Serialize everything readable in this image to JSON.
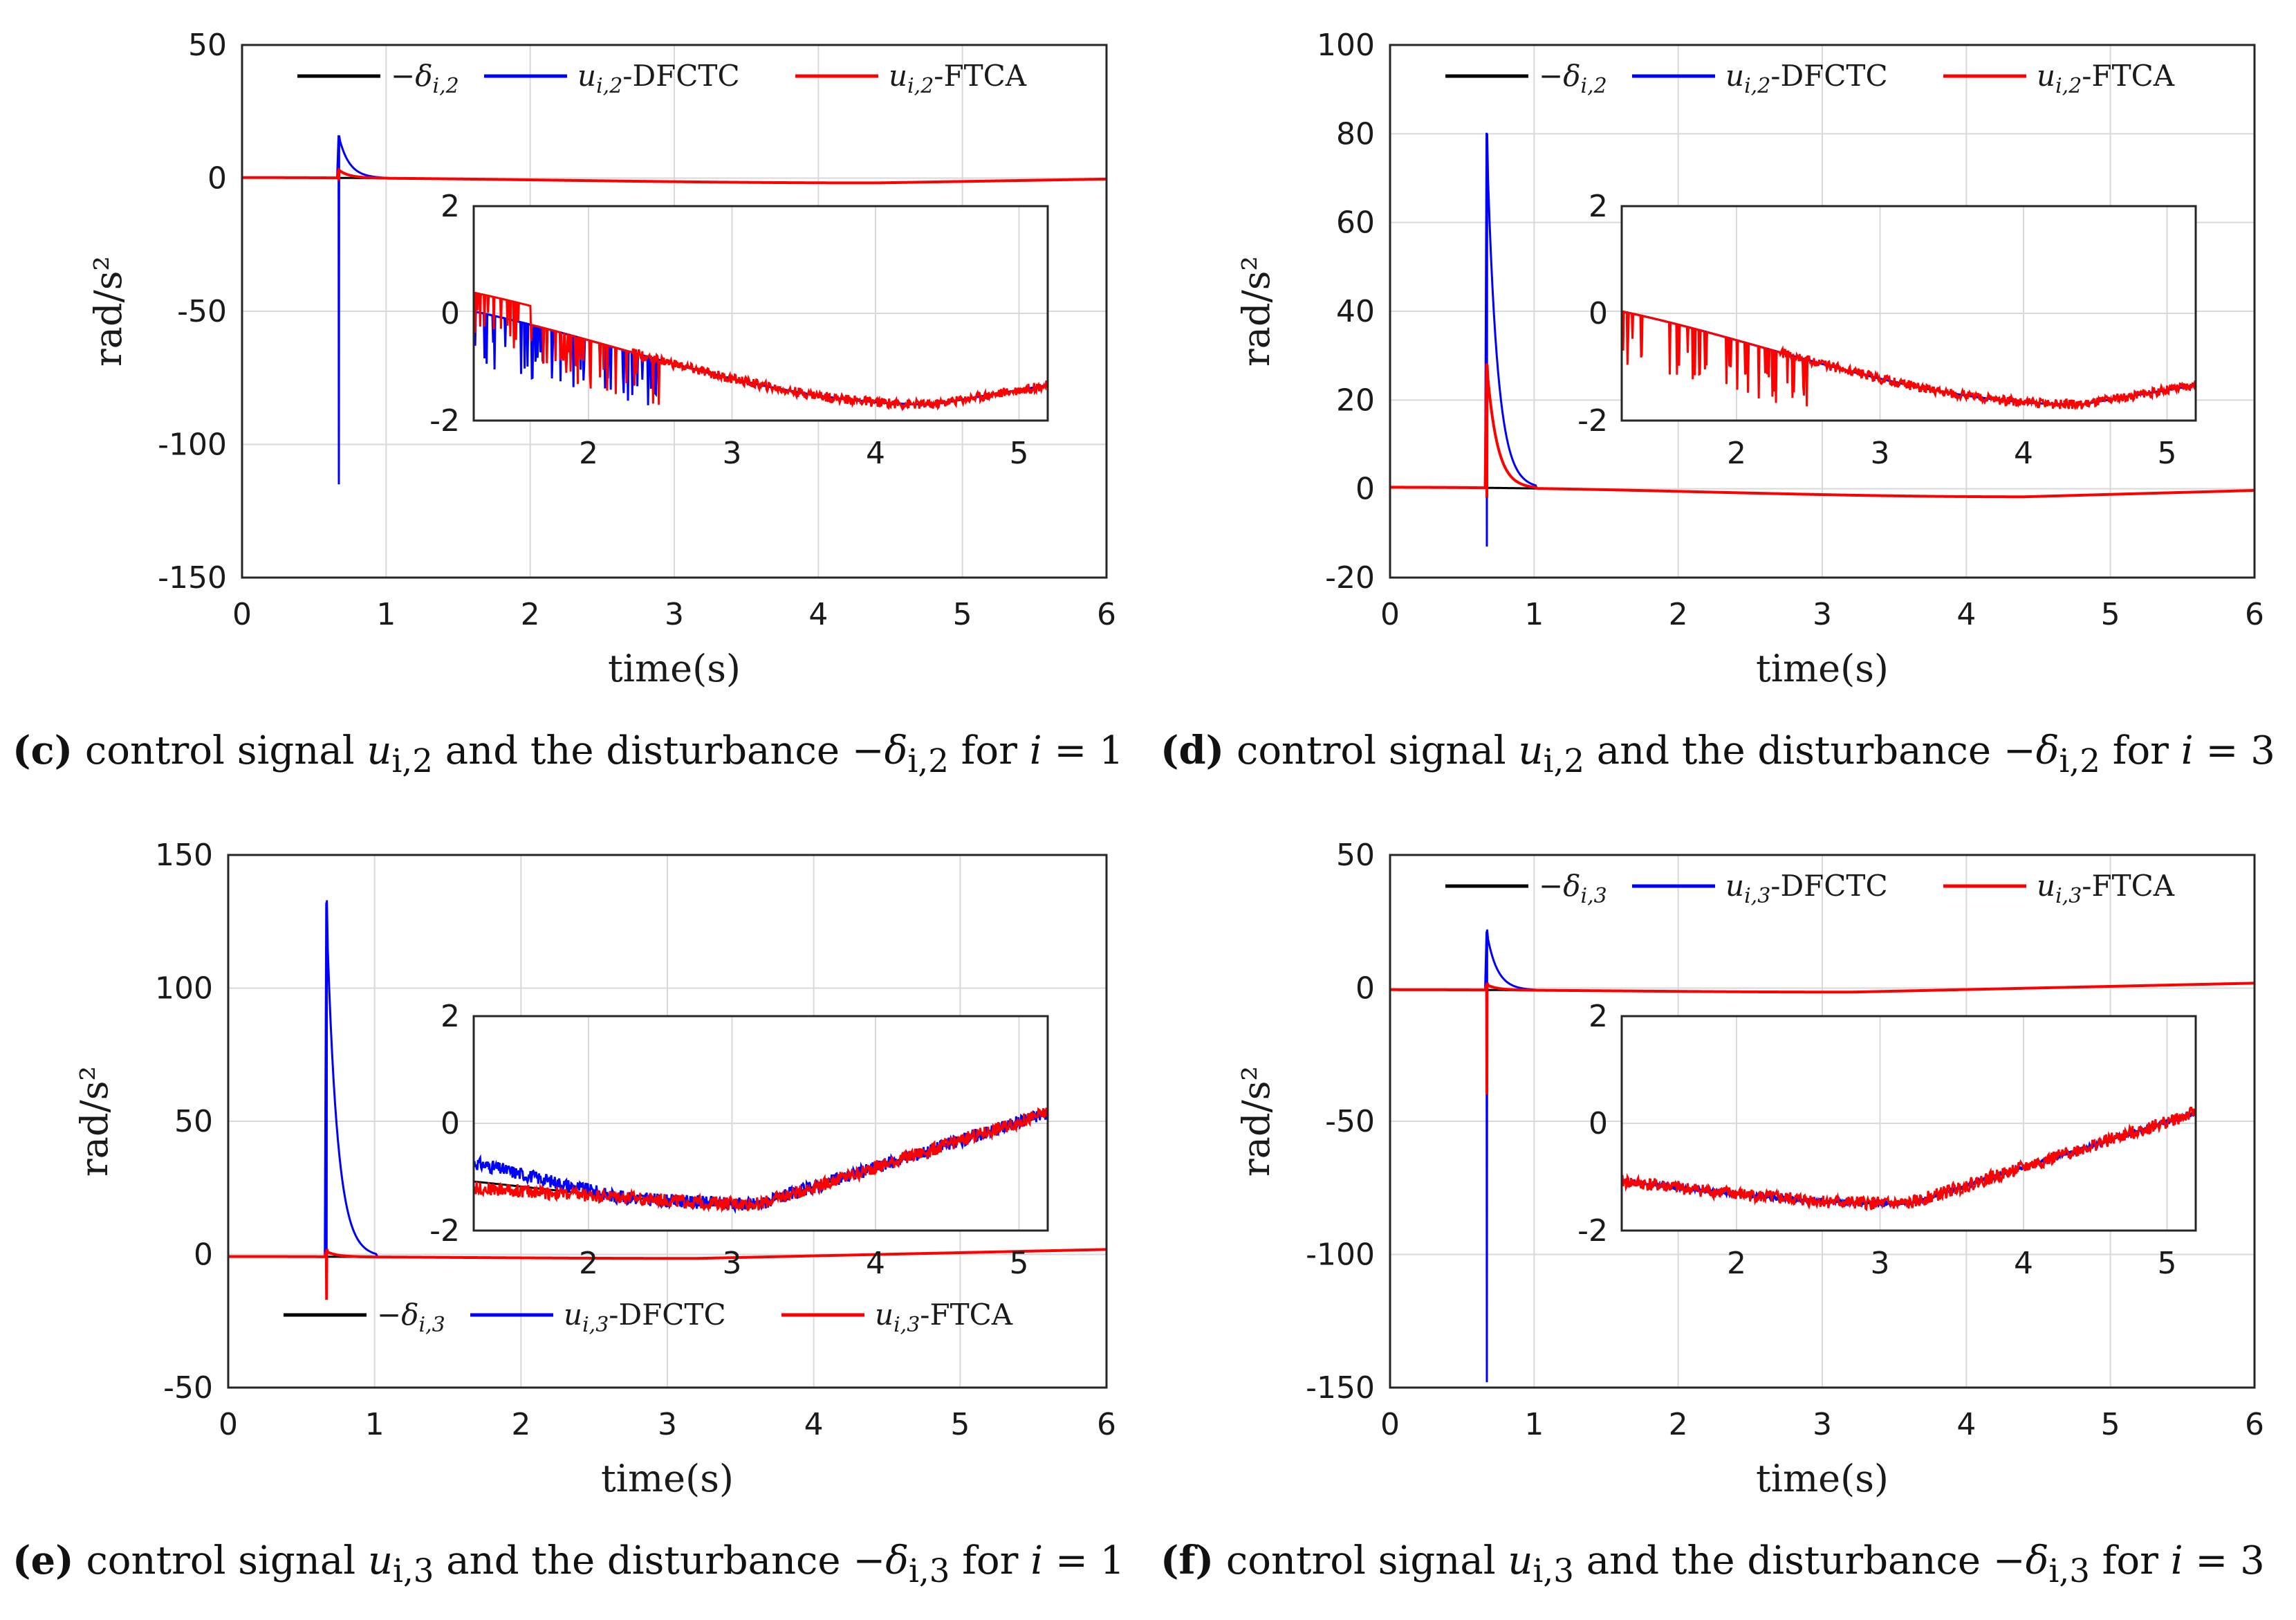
{
  "colors": {
    "disturbance": "#000000",
    "dfctc": "#0000ff",
    "ftca": "#ff0000",
    "grid": "#d9d9d9"
  },
  "chart_data": [
    {
      "id": "c",
      "type": "line",
      "caption": {
        "letter": "(c)",
        "pre": "control signal ",
        "sym": "u",
        "sub": "i,2",
        "mid": " and the disturbance −",
        "sym2": "δ",
        "sub2": "i,2",
        "post": " for ",
        "isym": "i",
        "eq": " = 1"
      },
      "xlabel": "time(s)",
      "ylabel": "rad/s²",
      "xlim": [
        0,
        6
      ],
      "ylim": [
        -150,
        50
      ],
      "xticks": [
        "0",
        "1",
        "2",
        "3",
        "4",
        "5",
        "6"
      ],
      "yticks": [
        "50",
        "0",
        "-50",
        "-100",
        "-150"
      ],
      "legend": {
        "position": "top",
        "entries": [
          {
            "main": "−δ",
            "sub": "i,2",
            "suffix": ""
          },
          {
            "main": "u",
            "sub": "i,2",
            "suffix": "-DFCTC"
          },
          {
            "main": "u",
            "sub": "i,2",
            "suffix": "-FTCA"
          }
        ]
      },
      "inset": {
        "xlim": [
          1.2,
          5.2
        ],
        "ylim": [
          -2,
          2
        ],
        "xticks": [
          "2",
          "3",
          "4",
          "5"
        ],
        "yticks": [
          "2",
          "0",
          "-2"
        ]
      },
      "spike": {
        "t": 0.67,
        "dfctc_min": -115,
        "dfctc_peak": 16,
        "ftca_min": -1,
        "ftca_peak": 3
      },
      "trend": {
        "a": 0.2,
        "b": -1.8,
        "c": 4.4,
        "d": 0.15
      },
      "inset_noise": {
        "dfctc": "early-down",
        "ftca": "early-mixed"
      }
    },
    {
      "id": "d",
      "type": "line",
      "caption": {
        "letter": "(d)",
        "pre": "control signal ",
        "sym": "u",
        "sub": "i,2",
        "mid": " and the disturbance −",
        "sym2": "δ",
        "sub2": "i,2",
        "post": " for ",
        "isym": "i",
        "eq": " = 3"
      },
      "xlabel": "time(s)",
      "ylabel": "rad/s²",
      "xlim": [
        0,
        6
      ],
      "ylim": [
        -20,
        100
      ],
      "xticks": [
        "0",
        "1",
        "2",
        "3",
        "4",
        "5",
        "6"
      ],
      "yticks": [
        "100",
        "80",
        "60",
        "40",
        "20",
        "0",
        "-20"
      ],
      "legend": {
        "position": "top",
        "entries": [
          {
            "main": "−δ",
            "sub": "i,2",
            "suffix": ""
          },
          {
            "main": "u",
            "sub": "i,2",
            "suffix": "-DFCTC"
          },
          {
            "main": "u",
            "sub": "i,2",
            "suffix": "-FTCA"
          }
        ]
      },
      "inset": {
        "xlim": [
          1.2,
          5.2
        ],
        "ylim": [
          -2,
          2
        ],
        "xticks": [
          "2",
          "3",
          "4",
          "5"
        ],
        "yticks": [
          "2",
          "0",
          "-2"
        ]
      },
      "spike": {
        "t": 0.67,
        "dfctc_min": -13,
        "dfctc_peak": 80,
        "ftca_min": -2,
        "ftca_peak": 28
      },
      "trend": {
        "a": 0.35,
        "b": -1.8,
        "c": 4.4,
        "d": 0.15
      },
      "inset_noise": {
        "dfctc": "none",
        "ftca": "early-down"
      }
    },
    {
      "id": "e",
      "type": "line",
      "caption": {
        "letter": "(e)",
        "pre": "control signal ",
        "sym": "u",
        "sub": "i,3",
        "mid": " and the disturbance −",
        "sym2": "δ",
        "sub2": "i,3",
        "post": " for ",
        "isym": "i",
        "eq": " = 1"
      },
      "xlabel": "time(s)",
      "ylabel": "rad/s²",
      "xlim": [
        0,
        6
      ],
      "ylim": [
        -50,
        150
      ],
      "xticks": [
        "0",
        "1",
        "2",
        "3",
        "4",
        "5",
        "6"
      ],
      "yticks": [
        "150",
        "100",
        "50",
        "0",
        "-50"
      ],
      "legend": {
        "position": "bottom",
        "entries": [
          {
            "main": "−δ",
            "sub": "i,3",
            "suffix": ""
          },
          {
            "main": "u",
            "sub": "i,3",
            "suffix": "-DFCTC"
          },
          {
            "main": "u",
            "sub": "i,3",
            "suffix": "-FTCA"
          }
        ]
      },
      "inset": {
        "xlim": [
          1.2,
          5.2
        ],
        "ylim": [
          -2,
          2
        ],
        "xticks": [
          "2",
          "3",
          "4",
          "5"
        ],
        "yticks": [
          "2",
          "0",
          "-2"
        ]
      },
      "spike": {
        "t": 0.67,
        "dfctc_min": -17,
        "dfctc_peak": 133,
        "ftca_min": -17,
        "ftca_peak": 2
      },
      "trend": {
        "a": -0.8,
        "b": -1.5,
        "c": 3.2,
        "d": 0.2
      },
      "inset_noise": {
        "dfctc": "dense",
        "ftca": "dense"
      }
    },
    {
      "id": "f",
      "type": "line",
      "caption": {
        "letter": "(f)",
        "pre": "control signal ",
        "sym": "u",
        "sub": "i,3",
        "mid": " and the disturbance −",
        "sym2": "δ",
        "sub2": "i,3",
        "post": " for ",
        "isym": "i",
        "eq": " = 3"
      },
      "xlabel": "time(s)",
      "ylabel": "rad/s²",
      "xlim": [
        0,
        6
      ],
      "ylim": [
        -150,
        50
      ],
      "xticks": [
        "0",
        "1",
        "2",
        "3",
        "4",
        "5",
        "6"
      ],
      "yticks": [
        "50",
        "0",
        "-50",
        "-100",
        "-150"
      ],
      "legend": {
        "position": "top",
        "entries": [
          {
            "main": "−δ",
            "sub": "i,3",
            "suffix": ""
          },
          {
            "main": "u",
            "sub": "i,3",
            "suffix": "-DFCTC"
          },
          {
            "main": "u",
            "sub": "i,3",
            "suffix": "-FTCA"
          }
        ]
      },
      "inset": {
        "xlim": [
          1.2,
          5.2
        ],
        "ylim": [
          -2,
          2
        ],
        "xticks": [
          "2",
          "3",
          "4",
          "5"
        ],
        "yticks": [
          "2",
          "0",
          "-2"
        ]
      },
      "spike": {
        "t": 0.67,
        "dfctc_min": -148,
        "dfctc_peak": 22,
        "ftca_min": -40,
        "ftca_peak": 2
      },
      "trend": {
        "a": -0.6,
        "b": -1.5,
        "c": 3.2,
        "d": 0.2
      },
      "inset_noise": {
        "dfctc": "light",
        "ftca": "dense"
      }
    }
  ]
}
